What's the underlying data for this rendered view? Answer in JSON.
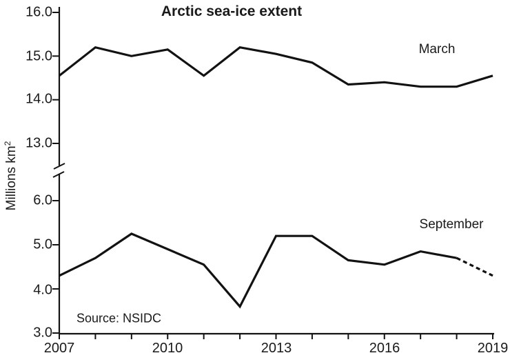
{
  "title": "Arctic sea-ice extent",
  "source_note": "Source: NSIDC",
  "y_axis": {
    "label": "Millions km",
    "label_superscript": "2"
  },
  "chart_data": {
    "type": "line",
    "title": "Arctic sea-ice extent",
    "ylabel": "Millions km^2",
    "x": [
      2007,
      2008,
      2009,
      2010,
      2011,
      2012,
      2013,
      2014,
      2015,
      2016,
      2017,
      2018,
      2019
    ],
    "x_tick_labels": [
      "2007",
      "2010",
      "2013",
      "2016",
      "2019"
    ],
    "x_tick_label_years": [
      2007,
      2010,
      2013,
      2016,
      2019
    ],
    "axis_break": true,
    "panels": {
      "top": {
        "range": [
          13.0,
          16.0
        ],
        "tick_labels": [
          "16.0",
          "15.0",
          "14.0",
          "13.0"
        ],
        "tick_values": [
          16.0,
          15.0,
          14.0,
          13.0
        ]
      },
      "bottom": {
        "range": [
          3.0,
          6.0
        ],
        "tick_labels": [
          "6.0",
          "5.0",
          "4.0",
          "3.0"
        ],
        "tick_values": [
          6.0,
          5.0,
          4.0,
          3.0
        ]
      }
    },
    "series": [
      {
        "name": "March",
        "panel": "top",
        "style": "solid",
        "values": [
          14.55,
          15.2,
          15.0,
          15.15,
          14.55,
          15.2,
          15.05,
          14.85,
          14.35,
          14.4,
          14.3,
          14.3,
          14.55
        ]
      },
      {
        "name": "September",
        "panel": "bottom",
        "style": "solid, dashed after 2018",
        "dashed_from_x": 2018,
        "values": [
          4.3,
          4.7,
          5.25,
          4.9,
          4.55,
          3.6,
          5.2,
          5.2,
          4.65,
          4.55,
          4.85,
          4.7,
          4.3
        ]
      }
    ],
    "line_color": "#121212",
    "grid": false,
    "legend": "inline labels near lines"
  }
}
